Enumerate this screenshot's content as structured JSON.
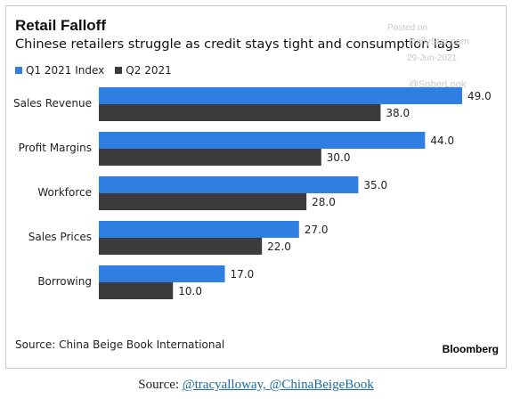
{
  "header": {
    "title": "Retail Falloff",
    "subtitle": "Chinese retailers struggle as credit stays tight and consumption lags"
  },
  "watermark": {
    "line1": "Posted on",
    "line2": "DailyStar.com",
    "line3": "29-Jun-2021",
    "line4": "@SoberLook"
  },
  "chart_data": {
    "type": "bar",
    "orientation": "horizontal",
    "categories": [
      "Sales Revenue",
      "Profit Margins",
      "Workforce",
      "Sales Prices",
      "Borrowing"
    ],
    "series": [
      {
        "name": "Q1 2021 Index",
        "color": "#2f7ee2",
        "values": [
          49.0,
          44.0,
          35.0,
          27.0,
          17.0
        ]
      },
      {
        "name": "Q2 2021",
        "color": "#3c3c3c",
        "values": [
          38.0,
          30.0,
          28.0,
          22.0,
          10.0
        ]
      }
    ],
    "xlim": [
      0,
      49
    ],
    "grid": false,
    "legend": "top-left",
    "data_labels": true
  },
  "footer": {
    "source": "Source: China Beige Book International",
    "brand": "Bloomberg"
  },
  "caption": {
    "prefix": "Source: ",
    "link_text": "@tracyalloway, @ChinaBeigeBook"
  }
}
